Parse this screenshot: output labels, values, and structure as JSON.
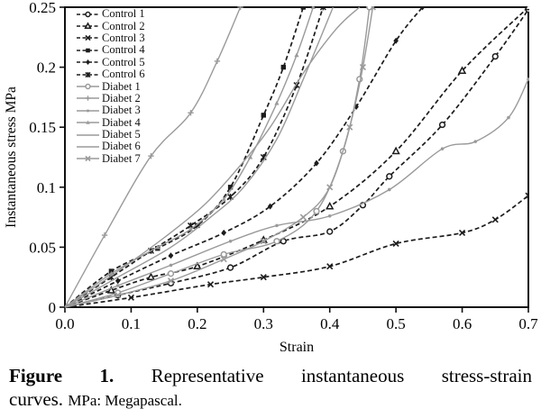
{
  "figure": {
    "caption": {
      "label": "Figure 1.",
      "line1_text": "Representative instantaneous stress-strain",
      "line2_text": "curves.",
      "line2_note": "MPa: Megapascal."
    }
  },
  "colors": {
    "control": "#1c1c1c",
    "diabet": "#9a9a9a",
    "axis": "#111111",
    "background": "#ffffff"
  },
  "chart_data": {
    "type": "line",
    "title": "",
    "xlabel": "Strain",
    "ylabel": "Instantaneous stress MPa",
    "xlim": [
      0,
      0.7
    ],
    "ylim": [
      0,
      0.25
    ],
    "grid": false,
    "legend_position": "upper-left-inside",
    "xticks": [
      [
        0,
        "0.0"
      ],
      [
        0.1,
        "0.1"
      ],
      [
        0.2,
        "0.2"
      ],
      [
        0.3,
        "0.3"
      ],
      [
        0.4,
        "0.4"
      ],
      [
        0.5,
        "0.5"
      ],
      [
        0.6,
        "0.6"
      ],
      [
        0.7,
        "0.7"
      ]
    ],
    "yticks": [
      [
        0,
        "0"
      ],
      [
        0.05,
        "0.05"
      ],
      [
        0.1,
        "0.1"
      ],
      [
        0.15,
        "0.15"
      ],
      [
        0.2,
        "0.2"
      ],
      [
        0.25,
        "0.25"
      ]
    ],
    "series": [
      {
        "name": "Control 1",
        "group": "control",
        "line": "dashed",
        "marker": "circle-open",
        "points": [
          [
            0,
            0
          ],
          [
            0.08,
            0.01
          ],
          [
            0.16,
            0.02
          ],
          [
            0.25,
            0.033
          ],
          [
            0.33,
            0.055
          ],
          [
            0.4,
            0.063
          ],
          [
            0.45,
            0.085
          ],
          [
            0.49,
            0.109
          ],
          [
            0.57,
            0.152
          ],
          [
            0.65,
            0.209
          ],
          [
            0.7,
            0.248
          ]
        ]
      },
      {
        "name": "Control 2",
        "group": "control",
        "line": "dashed",
        "marker": "triangle-open",
        "points": [
          [
            0,
            0
          ],
          [
            0.07,
            0.014
          ],
          [
            0.13,
            0.025
          ],
          [
            0.2,
            0.034
          ],
          [
            0.3,
            0.056
          ],
          [
            0.4,
            0.084
          ],
          [
            0.5,
            0.13
          ],
          [
            0.6,
            0.197
          ],
          [
            0.7,
            0.25
          ]
        ]
      },
      {
        "name": "Control 3",
        "group": "control",
        "line": "dashed",
        "marker": "x",
        "points": [
          [
            0,
            0
          ],
          [
            0.1,
            0.008
          ],
          [
            0.22,
            0.019
          ],
          [
            0.3,
            0.025
          ],
          [
            0.4,
            0.034
          ],
          [
            0.5,
            0.053
          ],
          [
            0.6,
            0.062
          ],
          [
            0.65,
            0.073
          ],
          [
            0.7,
            0.093
          ]
        ]
      },
      {
        "name": "Control 4",
        "group": "control",
        "line": "dashed",
        "marker": "square-filled",
        "points": [
          [
            0,
            0
          ],
          [
            0.07,
            0.03
          ],
          [
            0.14,
            0.049
          ],
          [
            0.2,
            0.068
          ],
          [
            0.25,
            0.1
          ],
          [
            0.3,
            0.16
          ],
          [
            0.33,
            0.2
          ],
          [
            0.36,
            0.25
          ]
        ]
      },
      {
        "name": "Control 5",
        "group": "control",
        "line": "dashed",
        "marker": "diamond-filled",
        "points": [
          [
            0,
            0
          ],
          [
            0.08,
            0.022
          ],
          [
            0.16,
            0.043
          ],
          [
            0.24,
            0.062
          ],
          [
            0.31,
            0.084
          ],
          [
            0.38,
            0.12
          ],
          [
            0.44,
            0.167
          ],
          [
            0.5,
            0.222
          ],
          [
            0.54,
            0.25
          ]
        ]
      },
      {
        "name": "Control 6",
        "group": "control",
        "line": "dashed",
        "marker": "asterisk",
        "points": [
          [
            0,
            0
          ],
          [
            0.07,
            0.025
          ],
          [
            0.13,
            0.047
          ],
          [
            0.19,
            0.068
          ],
          [
            0.25,
            0.092
          ],
          [
            0.3,
            0.125
          ],
          [
            0.35,
            0.185
          ],
          [
            0.39,
            0.25
          ]
        ]
      },
      {
        "name": "Diabet 1",
        "group": "diabet",
        "line": "solid",
        "marker": "circle-open",
        "points": [
          [
            0,
            0
          ],
          [
            0.08,
            0.012
          ],
          [
            0.16,
            0.028
          ],
          [
            0.24,
            0.044
          ],
          [
            0.32,
            0.055
          ],
          [
            0.38,
            0.08
          ],
          [
            0.42,
            0.13
          ],
          [
            0.445,
            0.19
          ],
          [
            0.46,
            0.25
          ]
        ]
      },
      {
        "name": "Diabet 2",
        "group": "diabet",
        "line": "solid",
        "marker": "plus",
        "points": [
          [
            0,
            0
          ],
          [
            0.06,
            0.06
          ],
          [
            0.13,
            0.126
          ],
          [
            0.19,
            0.162
          ],
          [
            0.23,
            0.205
          ],
          [
            0.265,
            0.25
          ]
        ]
      },
      {
        "name": "Diabet 3",
        "group": "diabet",
        "line": "solid",
        "marker": "dot",
        "points": [
          [
            0,
            0
          ],
          [
            0.08,
            0.018
          ],
          [
            0.16,
            0.035
          ],
          [
            0.25,
            0.055
          ],
          [
            0.32,
            0.068
          ],
          [
            0.4,
            0.076
          ],
          [
            0.49,
            0.098
          ],
          [
            0.57,
            0.132
          ],
          [
            0.62,
            0.138
          ],
          [
            0.67,
            0.158
          ],
          [
            0.7,
            0.19
          ]
        ]
      },
      {
        "name": "Diabet 4",
        "group": "diabet",
        "line": "solid",
        "marker": "triangle-filled",
        "points": [
          [
            0,
            0
          ],
          [
            0.07,
            0.028
          ],
          [
            0.14,
            0.05
          ],
          [
            0.19,
            0.065
          ],
          [
            0.24,
            0.09
          ],
          [
            0.28,
            0.125
          ],
          [
            0.32,
            0.17
          ],
          [
            0.35,
            0.21
          ],
          [
            0.375,
            0.25
          ]
        ]
      },
      {
        "name": "Diabet 5",
        "group": "diabet",
        "line": "solid",
        "marker": "none",
        "points": [
          [
            0,
            0
          ],
          [
            0.08,
            0.025
          ],
          [
            0.16,
            0.05
          ],
          [
            0.22,
            0.075
          ],
          [
            0.27,
            0.1
          ],
          [
            0.32,
            0.14
          ],
          [
            0.36,
            0.19
          ],
          [
            0.405,
            0.25
          ]
        ]
      },
      {
        "name": "Diabet 6",
        "group": "diabet",
        "line": "solid",
        "marker": "none",
        "points": [
          [
            0,
            0
          ],
          [
            0.08,
            0.03
          ],
          [
            0.15,
            0.058
          ],
          [
            0.21,
            0.085
          ],
          [
            0.26,
            0.115
          ],
          [
            0.31,
            0.15
          ],
          [
            0.36,
            0.195
          ],
          [
            0.41,
            0.232
          ],
          [
            0.445,
            0.25
          ]
        ]
      },
      {
        "name": "Diabet 7",
        "group": "diabet",
        "line": "solid",
        "marker": "x",
        "points": [
          [
            0,
            0
          ],
          [
            0.08,
            0.01
          ],
          [
            0.16,
            0.022
          ],
          [
            0.24,
            0.04
          ],
          [
            0.3,
            0.055
          ],
          [
            0.36,
            0.075
          ],
          [
            0.4,
            0.1
          ],
          [
            0.43,
            0.15
          ],
          [
            0.45,
            0.2
          ],
          [
            0.465,
            0.25
          ]
        ]
      }
    ]
  }
}
